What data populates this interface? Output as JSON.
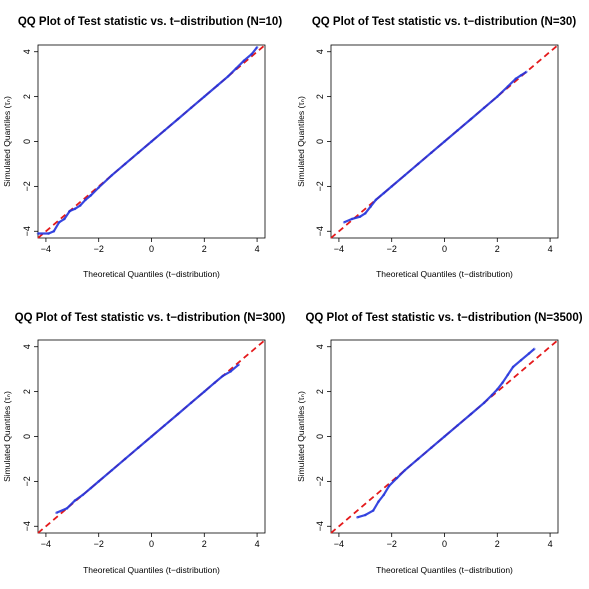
{
  "chart_data": [
    {
      "type": "scatter",
      "title": "QQ Plot of Test statistic vs. t−distribution (N=10)",
      "xlabel": "Theoretical Quantiles (t−distribution)",
      "ylabel": "Simulated Quantiles (τₙ)",
      "xlim": [
        -4.3,
        4.3
      ],
      "ylim": [
        -4.3,
        4.3
      ],
      "xticks": [
        -4,
        -2,
        0,
        2,
        4
      ],
      "yticks": [
        -4,
        -2,
        0,
        2,
        4
      ],
      "xtick_labels": [
        "−4",
        "−2",
        "0",
        "2",
        "4"
      ],
      "ytick_labels": [
        "−4",
        "−2",
        "0",
        "2",
        "4"
      ],
      "reference_line": {
        "slope": 1,
        "intercept": 0,
        "color": "#e41a1c",
        "style": "dashed"
      },
      "point_color": "#2233dd",
      "points": [
        [
          -4.3,
          -4.1
        ],
        [
          -3.9,
          -4.1
        ],
        [
          -3.7,
          -4.0
        ],
        [
          -3.5,
          -3.6
        ],
        [
          -3.3,
          -3.45
        ],
        [
          -3.1,
          -3.1
        ],
        [
          -2.9,
          -3.0
        ],
        [
          -2.7,
          -2.85
        ],
        [
          -2.5,
          -2.6
        ],
        [
          -2.3,
          -2.4
        ],
        [
          -2.0,
          -2.05
        ],
        [
          -1.5,
          -1.5
        ],
        [
          -1.0,
          -1.0
        ],
        [
          -0.5,
          -0.5
        ],
        [
          0,
          0
        ],
        [
          0.5,
          0.5
        ],
        [
          1.0,
          1.0
        ],
        [
          1.5,
          1.5
        ],
        [
          2.0,
          2.0
        ],
        [
          2.5,
          2.5
        ],
        [
          2.9,
          2.9
        ],
        [
          3.2,
          3.25
        ],
        [
          3.5,
          3.6
        ],
        [
          3.8,
          3.9
        ],
        [
          4.0,
          4.2
        ]
      ]
    },
    {
      "type": "scatter",
      "title": "QQ Plot of Test statistic vs. t−distribution (N=30)",
      "xlabel": "Theoretical Quantiles (t−distribution)",
      "ylabel": "Simulated Quantiles (τₙ)",
      "xlim": [
        -4.3,
        4.3
      ],
      "ylim": [
        -4.3,
        4.3
      ],
      "xticks": [
        -4,
        -2,
        0,
        2,
        4
      ],
      "yticks": [
        -4,
        -2,
        0,
        2,
        4
      ],
      "xtick_labels": [
        "−4",
        "−2",
        "0",
        "2",
        "4"
      ],
      "ytick_labels": [
        "−4",
        "−2",
        "0",
        "2",
        "4"
      ],
      "reference_line": {
        "slope": 1,
        "intercept": 0,
        "color": "#e41a1c",
        "style": "dashed"
      },
      "point_color": "#2233dd",
      "points": [
        [
          -3.8,
          -3.6
        ],
        [
          -3.5,
          -3.45
        ],
        [
          -3.2,
          -3.35
        ],
        [
          -3.0,
          -3.2
        ],
        [
          -2.8,
          -2.9
        ],
        [
          -2.6,
          -2.6
        ],
        [
          -2.3,
          -2.3
        ],
        [
          -2.0,
          -2.0
        ],
        [
          -1.5,
          -1.5
        ],
        [
          -1.0,
          -1.0
        ],
        [
          -0.5,
          -0.5
        ],
        [
          0,
          0
        ],
        [
          0.5,
          0.5
        ],
        [
          1.0,
          1.0
        ],
        [
          1.5,
          1.5
        ],
        [
          2.0,
          2.0
        ],
        [
          2.4,
          2.45
        ],
        [
          2.7,
          2.8
        ],
        [
          2.9,
          2.95
        ],
        [
          3.1,
          3.1
        ]
      ]
    },
    {
      "type": "scatter",
      "title": "QQ Plot of Test statistic vs. t−distribution (N=300)",
      "xlabel": "Theoretical Quantiles (t−distribution)",
      "ylabel": "Simulated Quantiles (τₙ)",
      "xlim": [
        -4.3,
        4.3
      ],
      "ylim": [
        -4.3,
        4.3
      ],
      "xticks": [
        -4,
        -2,
        0,
        2,
        4
      ],
      "yticks": [
        -4,
        -2,
        0,
        2,
        4
      ],
      "xtick_labels": [
        "−4",
        "−2",
        "0",
        "2",
        "4"
      ],
      "ytick_labels": [
        "−4",
        "−2",
        "0",
        "2",
        "4"
      ],
      "reference_line": {
        "slope": 1,
        "intercept": 0,
        "color": "#e41a1c",
        "style": "dashed"
      },
      "point_color": "#2233dd",
      "points": [
        [
          -3.6,
          -3.4
        ],
        [
          -3.2,
          -3.2
        ],
        [
          -2.9,
          -2.85
        ],
        [
          -2.6,
          -2.6
        ],
        [
          -2.3,
          -2.3
        ],
        [
          -2.0,
          -2.0
        ],
        [
          -1.5,
          -1.5
        ],
        [
          -1.0,
          -1.0
        ],
        [
          -0.5,
          -0.5
        ],
        [
          0,
          0
        ],
        [
          0.5,
          0.5
        ],
        [
          1.0,
          1.0
        ],
        [
          1.5,
          1.5
        ],
        [
          2.0,
          2.0
        ],
        [
          2.4,
          2.4
        ],
        [
          2.7,
          2.7
        ],
        [
          3.0,
          2.9
        ],
        [
          3.3,
          3.2
        ]
      ]
    },
    {
      "type": "scatter",
      "title": "QQ Plot of Test statistic vs. t−distribution (N=3500)",
      "xlabel": "Theoretical Quantiles (t−distribution)",
      "ylabel": "Simulated Quantiles (τₙ)",
      "xlim": [
        -4.3,
        4.3
      ],
      "ylim": [
        -4.3,
        4.3
      ],
      "xticks": [
        -4,
        -2,
        0,
        2,
        4
      ],
      "yticks": [
        -4,
        -2,
        0,
        2,
        4
      ],
      "xtick_labels": [
        "−4",
        "−2",
        "0",
        "2",
        "4"
      ],
      "ytick_labels": [
        "−4",
        "−2",
        "0",
        "2",
        "4"
      ],
      "reference_line": {
        "slope": 1,
        "intercept": 0,
        "color": "#e41a1c",
        "style": "dashed"
      },
      "point_color": "#2233dd",
      "points": [
        [
          -3.3,
          -3.6
        ],
        [
          -3.0,
          -3.5
        ],
        [
          -2.7,
          -3.3
        ],
        [
          -2.5,
          -2.9
        ],
        [
          -2.3,
          -2.6
        ],
        [
          -2.1,
          -2.2
        ],
        [
          -1.8,
          -1.85
        ],
        [
          -1.5,
          -1.5
        ],
        [
          -1.0,
          -1.0
        ],
        [
          -0.5,
          -0.5
        ],
        [
          0,
          0
        ],
        [
          0.5,
          0.5
        ],
        [
          1.0,
          1.0
        ],
        [
          1.5,
          1.5
        ],
        [
          1.8,
          1.85
        ],
        [
          2.0,
          2.1
        ],
        [
          2.2,
          2.4
        ],
        [
          2.4,
          2.75
        ],
        [
          2.6,
          3.1
        ],
        [
          2.9,
          3.4
        ],
        [
          3.2,
          3.7
        ],
        [
          3.4,
          3.9
        ]
      ]
    }
  ]
}
